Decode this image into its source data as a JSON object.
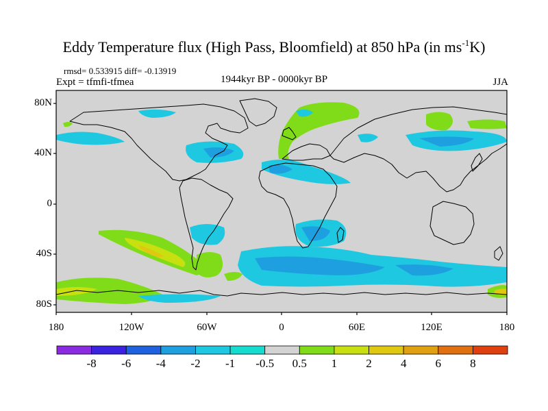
{
  "title_main": "Eddy Temperature flux (High Pass, Bloomfield) at 850 hPa (in ms",
  "title_exp": "-1",
  "title_end": "K)",
  "stats": "rmsd= 0.533915 diff= -0.13919",
  "expt": "Expt = tfmfi-tfmea",
  "period": "1944kyr BP - 0000kyr BP",
  "season": "JJA",
  "lat_labels": [
    "80N",
    "40N",
    "0",
    "40S",
    "80S"
  ],
  "lon_labels": [
    "180",
    "120W",
    "60W",
    "0",
    "60E",
    "120E",
    "180"
  ],
  "colorbar": {
    "colors": [
      "#8a2be2",
      "#3b22e0",
      "#1e62e0",
      "#1ea0e0",
      "#1ec8e0",
      "#16dcd0",
      "#d3d3d3",
      "#80dc18",
      "#c8e010",
      "#e0c810",
      "#e0a010",
      "#e07010",
      "#e04010"
    ],
    "labels": [
      "-8",
      "-6",
      "-4",
      "-2",
      "-1",
      "-0.5",
      "0.5",
      "1",
      "2",
      "4",
      "6",
      "8"
    ]
  },
  "map_colors": {
    "neutral": "#d3d3d3",
    "neg1": "#1ec8e0",
    "neg2": "#1ea0e0",
    "pos1": "#80dc18",
    "pos2": "#c8e010",
    "pos3": "#e0c810"
  }
}
